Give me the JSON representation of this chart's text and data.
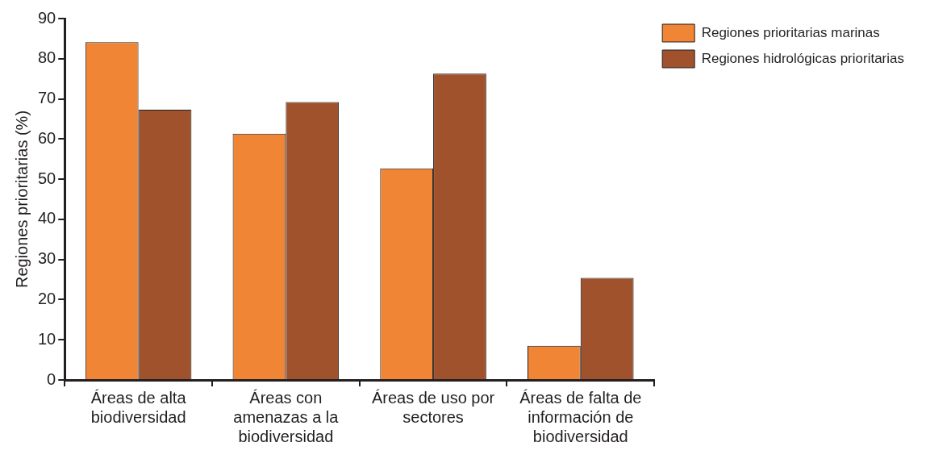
{
  "chart_data": {
    "type": "bar",
    "ylabel": "Regiones prioritarias (%)",
    "categories": [
      "Áreas de alta biodiversidad",
      "Áreas con amenazas a la biodiversidad",
      "Áreas de uso por sectores",
      "Áreas de falta de información de biodiversidad"
    ],
    "series": [
      {
        "name": "Regiones prioritarias marinas",
        "color": "#f08536",
        "values": [
          84.1,
          61.3,
          52.7,
          8.5
        ]
      },
      {
        "name": "Regiones hidrológicas prioritarias",
        "color": "#a0522d",
        "values": [
          67.3,
          69.2,
          76.3,
          25.4
        ]
      }
    ],
    "ylim": [
      0,
      90
    ],
    "yticks": [
      0,
      10,
      20,
      30,
      40,
      50,
      60,
      70,
      80,
      90
    ],
    "grid": false,
    "legend": "top right"
  }
}
